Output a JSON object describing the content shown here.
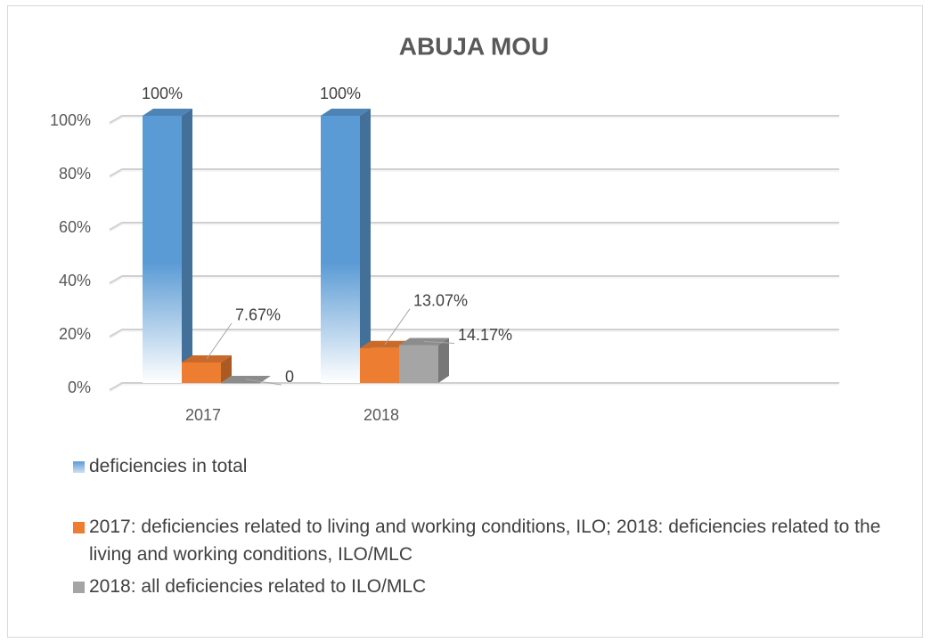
{
  "chart_data": {
    "type": "bar",
    "title": "ABUJA MOU",
    "categories": [
      "2017",
      "2018"
    ],
    "series": [
      {
        "name": "deficiencies in total",
        "color": "#5b9bd5",
        "values": [
          100,
          100
        ],
        "value_labels": [
          "100%",
          "100%"
        ]
      },
      {
        "name": "2017: deficiencies related to living and working conditions, ILO; 2018:  deficiencies related to the living and working conditions, ILO/MLC",
        "color": "#ed7d31",
        "values": [
          7.67,
          13.07
        ],
        "value_labels": [
          "7.67%",
          "13.07%"
        ]
      },
      {
        "name": "2018: all deficiencies related to ILO/MLC",
        "color": "#a5a5a5",
        "values": [
          0,
          14.17
        ],
        "value_labels": [
          "0",
          "14.17%"
        ]
      }
    ],
    "ylim": [
      0,
      100
    ],
    "yticks": [
      {
        "value": 0,
        "label": "0%"
      },
      {
        "value": 20,
        "label": "20%"
      },
      {
        "value": 40,
        "label": "40%"
      },
      {
        "value": 60,
        "label": "60%"
      },
      {
        "value": 80,
        "label": "80%"
      },
      {
        "value": 100,
        "label": "100%"
      }
    ],
    "grid": true,
    "legend": "bottom"
  }
}
